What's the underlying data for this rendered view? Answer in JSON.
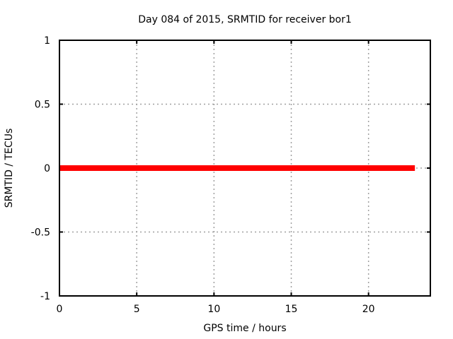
{
  "figure": {
    "background": "#ffffff"
  },
  "chart_data": {
    "type": "line",
    "title": "Day 084 of 2015, SRMTID for receiver bor1",
    "xlabel": "GPS time / hours",
    "ylabel": "SRMTID / TECUs",
    "xlim": [
      0,
      24
    ],
    "ylim": [
      -1,
      1
    ],
    "xticks": [
      0,
      5,
      10,
      15,
      20
    ],
    "xtick_labels": [
      "0",
      "5",
      "10",
      "15",
      "20"
    ],
    "yticks": [
      -1,
      -0.5,
      0,
      0.5,
      1
    ],
    "ytick_labels": [
      "-1",
      "-0.5",
      "0",
      "0.5",
      "1"
    ],
    "grid": true,
    "legend_position": "none",
    "series": [
      {
        "name": "SRMTID",
        "color": "#ff0000",
        "line_width": 8,
        "x": [
          0,
          23
        ],
        "y": [
          0,
          0
        ]
      }
    ],
    "colors": {
      "border": "#000000",
      "grid": "#a0a0a0",
      "text": "#000000"
    }
  }
}
